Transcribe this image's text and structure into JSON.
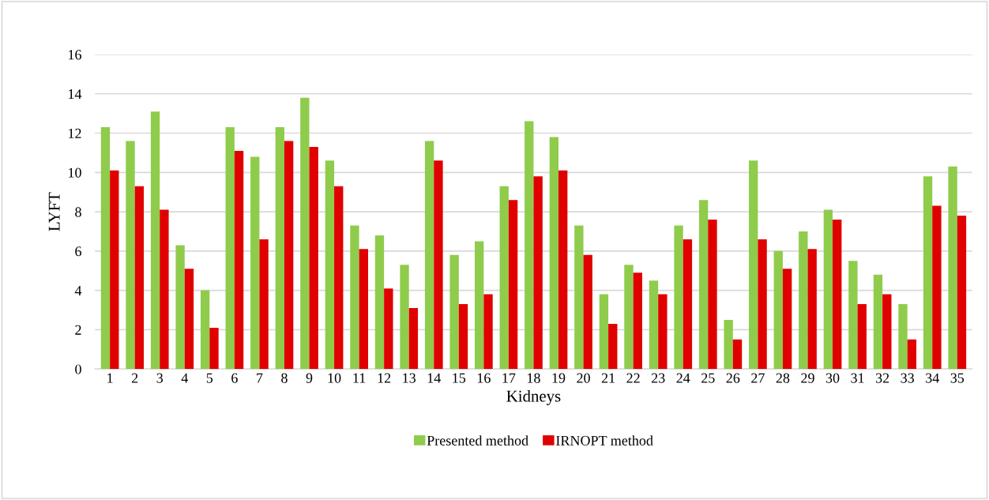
{
  "chart_data": {
    "type": "bar",
    "xlabel": "Kidneys",
    "ylabel": "LYFT",
    "categories": [
      "1",
      "2",
      "3",
      "4",
      "5",
      "6",
      "7",
      "8",
      "9",
      "10",
      "11",
      "12",
      "13",
      "14",
      "15",
      "16",
      "17",
      "18",
      "19",
      "20",
      "21",
      "22",
      "23",
      "24",
      "25",
      "26",
      "27",
      "28",
      "29",
      "30",
      "31",
      "32",
      "33",
      "34",
      "35"
    ],
    "series": [
      {
        "name": "Presented method",
        "color": "#8fcc4c",
        "values": [
          12.3,
          11.6,
          13.1,
          6.3,
          4.0,
          12.3,
          10.8,
          12.3,
          13.8,
          10.6,
          7.3,
          6.8,
          5.3,
          11.6,
          5.8,
          6.5,
          9.3,
          12.6,
          11.8,
          7.3,
          3.8,
          5.3,
          4.5,
          7.3,
          8.6,
          2.5,
          10.6,
          6.0,
          7.0,
          8.1,
          5.5,
          4.8,
          3.3,
          9.8,
          10.3
        ]
      },
      {
        "name": "IRNOPT method",
        "color": "#e00000",
        "values": [
          10.1,
          9.3,
          8.1,
          5.1,
          2.1,
          11.1,
          6.6,
          11.6,
          11.3,
          9.3,
          6.1,
          4.1,
          3.1,
          10.6,
          3.3,
          3.8,
          8.6,
          9.8,
          10.1,
          5.8,
          2.3,
          4.9,
          3.8,
          6.6,
          7.6,
          1.5,
          6.6,
          5.1,
          6.1,
          7.6,
          3.3,
          3.8,
          1.5,
          8.3,
          7.8
        ]
      }
    ],
    "ylim": [
      0,
      16
    ],
    "yticks": [
      0,
      2,
      4,
      6,
      8,
      10,
      12,
      14,
      16
    ],
    "grid": "y",
    "legend": "bottom"
  }
}
